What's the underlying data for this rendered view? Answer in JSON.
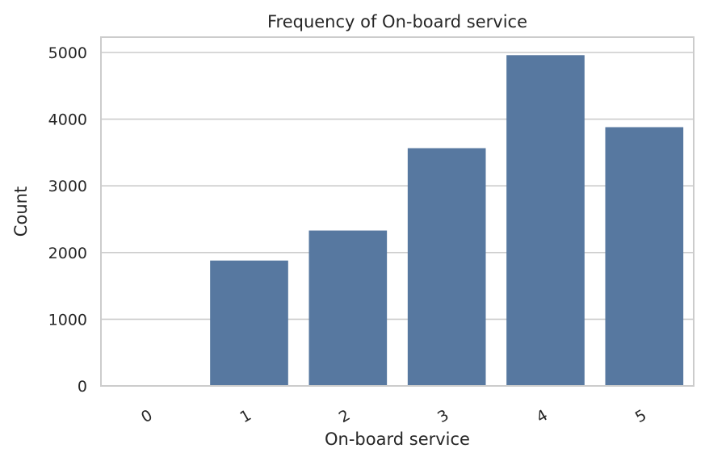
{
  "chart_data": {
    "type": "bar",
    "title": "Frequency of On-board service",
    "xlabel": "On-board service",
    "ylabel": "Count",
    "categories": [
      "0",
      "1",
      "2",
      "3",
      "4",
      "5"
    ],
    "values": [
      3,
      1880,
      2330,
      3565,
      4960,
      3880
    ],
    "ylim": [
      0,
      5230
    ],
    "yticks": [
      0,
      1000,
      2000,
      3000,
      4000,
      5000
    ],
    "ytick_labels": [
      "0",
      "1000",
      "2000",
      "3000",
      "4000",
      "5000"
    ],
    "grid": "y",
    "bar_color": "#5778a0",
    "grid_color": "#cccccc",
    "spine_color": "#cccccc",
    "xtick_rotation": -30
  }
}
